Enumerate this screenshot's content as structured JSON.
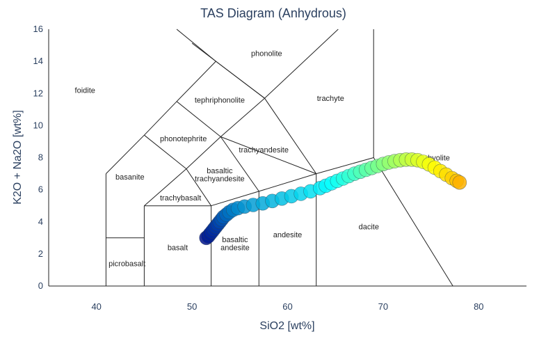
{
  "chart_data": {
    "type": "scatter",
    "title": "TAS Diagram (Anhydrous)",
    "xlabel": "SiO2 [wt%]",
    "ylabel": "K2O + Na2O [wt%]",
    "xlim": [
      35,
      85
    ],
    "ylim": [
      0,
      16
    ],
    "xticks": [
      "40",
      "50",
      "60",
      "70",
      "80"
    ],
    "xtick_values": [
      40,
      50,
      60,
      70,
      80
    ],
    "yticks": [
      "0",
      "2",
      "4",
      "6",
      "8",
      "10",
      "12",
      "14",
      "16"
    ],
    "ytick_values": [
      0,
      2,
      4,
      6,
      8,
      10,
      12,
      14,
      16
    ],
    "grid": false,
    "colorscale": "jet",
    "boundaries": [
      [
        [
          41,
          0
        ],
        [
          41,
          7
        ]
      ],
      [
        [
          41,
          3
        ],
        [
          45,
          3
        ]
      ],
      [
        [
          45,
          0
        ],
        [
          45,
          5
        ]
      ],
      [
        [
          45,
          5
        ],
        [
          52,
          5
        ]
      ],
      [
        [
          52,
          0
        ],
        [
          52,
          5
        ]
      ],
      [
        [
          52,
          5
        ],
        [
          57,
          5.9
        ]
      ],
      [
        [
          57,
          0
        ],
        [
          57,
          5.9
        ]
      ],
      [
        [
          57,
          5.9
        ],
        [
          63,
          7
        ]
      ],
      [
        [
          63,
          0
        ],
        [
          63,
          7
        ]
      ],
      [
        [
          63,
          7
        ],
        [
          69,
          8
        ]
      ],
      [
        [
          69,
          8
        ],
        [
          69,
          16
        ]
      ],
      [
        [
          69,
          8
        ],
        [
          77.3,
          0
        ]
      ],
      [
        [
          41,
          7
        ],
        [
          45,
          9.4
        ]
      ],
      [
        [
          45,
          9.4
        ],
        [
          48.4,
          11.5
        ]
      ],
      [
        [
          48.4,
          11.5
        ],
        [
          52.5,
          14
        ]
      ],
      [
        [
          52.5,
          14
        ],
        [
          57.6,
          11.7
        ]
      ],
      [
        [
          57.6,
          11.7
        ],
        [
          63,
          7
        ]
      ],
      [
        [
          45,
          5
        ],
        [
          49.4,
          7.3
        ]
      ],
      [
        [
          49.4,
          7.3
        ],
        [
          53,
          9.3
        ]
      ],
      [
        [
          53,
          9.3
        ],
        [
          57.6,
          11.7
        ]
      ],
      [
        [
          52,
          5
        ],
        [
          49.4,
          7.3
        ]
      ],
      [
        [
          49.4,
          7.3
        ],
        [
          45,
          9.4
        ]
      ],
      [
        [
          57,
          5.9
        ],
        [
          53,
          9.3
        ]
      ],
      [
        [
          53,
          9.3
        ],
        [
          48.4,
          11.5
        ]
      ],
      [
        [
          63,
          7
        ],
        [
          53,
          9.3
        ]
      ],
      [
        [
          52.5,
          14
        ],
        [
          48.4,
          16
        ]
      ],
      [
        [
          57.6,
          11.7
        ],
        [
          50,
          15.13
        ]
      ],
      [
        [
          57.6,
          11.7
        ],
        [
          65.3,
          16
        ]
      ]
    ],
    "labels": [
      {
        "text": "foidite",
        "x": 38.8,
        "y": 12.2
      },
      {
        "text": "phonolite",
        "x": 57.8,
        "y": 14.5
      },
      {
        "text": "tephriphonolite",
        "x": 52.9,
        "y": 11.6
      },
      {
        "text": "trachyte",
        "x": 64.5,
        "y": 11.7
      },
      {
        "text": "phonotephrite",
        "x": 49.1,
        "y": 9.2
      },
      {
        "text": "trachyandesite",
        "x": 57.5,
        "y": 8.5
      },
      {
        "text": "basanite",
        "x": 43.5,
        "y": 6.8
      },
      {
        "text": "basaltic",
        "x": 52.9,
        "y": 7.2
      },
      {
        "text": "trachyandesite",
        "x": 52.9,
        "y": 6.7
      },
      {
        "text": "trachybasalt",
        "x": 48.8,
        "y": 5.5
      },
      {
        "text": "rhyolite",
        "x": 75.7,
        "y": 8.0
      },
      {
        "text": "dacite",
        "x": 68.5,
        "y": 3.7
      },
      {
        "text": "andesite",
        "x": 60,
        "y": 3.2
      },
      {
        "text": "basaltic",
        "x": 54.5,
        "y": 2.9
      },
      {
        "text": "andesite",
        "x": 54.5,
        "y": 2.4
      },
      {
        "text": "basalt",
        "x": 48.5,
        "y": 2.4
      },
      {
        "text": "picrobasalt",
        "x": 43.2,
        "y": 1.4
      }
    ],
    "x": [
      51.5,
      51.7,
      51.9,
      52.1,
      52.3,
      52.5,
      52.7,
      52.9,
      53.1,
      53.3,
      53.6,
      53.9,
      54.3,
      54.8,
      55.5,
      56.4,
      57.4,
      58.4,
      59.4,
      60.4,
      61.4,
      62.4,
      63.4,
      64.0,
      64.6,
      65.2,
      65.8,
      66.4,
      67.0,
      67.6,
      68.2,
      68.8,
      69.4,
      70.0,
      70.6,
      71.2,
      71.8,
      72.4,
      73.0,
      73.6,
      74.2,
      74.8,
      75.4,
      76.0,
      76.6,
      77.2,
      77.7,
      78.0
    ],
    "y": [
      3.0,
      3.1,
      3.25,
      3.4,
      3.55,
      3.7,
      3.85,
      4.0,
      4.15,
      4.3,
      4.45,
      4.6,
      4.75,
      4.85,
      4.95,
      5.05,
      5.15,
      5.3,
      5.45,
      5.6,
      5.75,
      5.9,
      6.1,
      6.25,
      6.4,
      6.55,
      6.7,
      6.85,
      7.0,
      7.12,
      7.24,
      7.36,
      7.48,
      7.6,
      7.7,
      7.78,
      7.84,
      7.88,
      7.88,
      7.84,
      7.74,
      7.58,
      7.38,
      7.16,
      6.94,
      6.72,
      6.55,
      6.45
    ]
  }
}
